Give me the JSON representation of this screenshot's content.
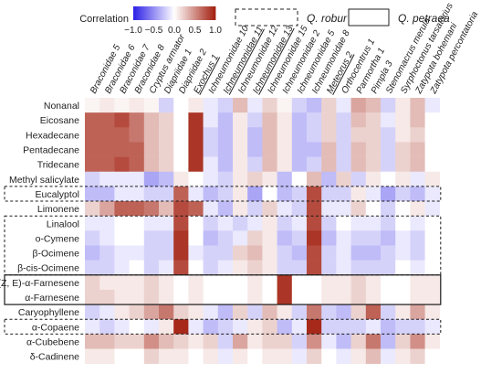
{
  "chart_data": {
    "type": "heatmap",
    "colorbar": {
      "label": "Correlation",
      "ticks": [
        "−1.0",
        "−0.5",
        "0.0",
        "0.5",
        "1.0"
      ],
      "range": [
        -1,
        1
      ],
      "colors": {
        "neg": "#2b1ee6",
        "mid": "#ffffff",
        "pos": "#a21e0e"
      }
    },
    "legend": [
      {
        "label": "Q. robur",
        "style": "dashed"
      },
      {
        "label": "Q. petraea",
        "style": "solid"
      }
    ],
    "columns": [
      "Braconidae 5",
      "Braconidae 6",
      "Braconidae 7",
      "Braconidae 8",
      "Cryptus armator",
      "Diapriidae 1",
      "Diapriidae 2",
      "Exochus 1",
      "Ichneumonidae 10",
      "Ichneumonidae 11",
      "Ichneumonidae 12",
      "Ichneumonidae 13",
      "Ichneumonidae 15",
      "Ichneumonidae 2",
      "Ichneumonidae 5",
      "Ichneumonidae 8",
      "Meteorus 2",
      "Orthocentrus 1",
      "Parmortha 1",
      "Pimpla 3",
      "Stenomacrus merula",
      "Syrphoctonus tarsatorius",
      "Zatypota bohemani",
      "Zatypota percontatoria"
    ],
    "column_underline": [
      "Exochus 1",
      "Ichneumonidae 11",
      "Ichneumonidae 13",
      "Meteorus 2"
    ],
    "rows": [
      "Nonanal",
      "Eicosane",
      "Hexadecane",
      "Pentadecane",
      "Tridecane",
      "Methyl salicylate",
      "Eucalyptol",
      "Limonene",
      "Linalool",
      "o-Cymene",
      "β-Ocimene",
      "β-cis-Ocimene",
      "(Z, E)-α-Farnesene",
      "α-Farnesene",
      "Caryophyllene",
      "α-Copaene",
      "α-Cubebene",
      "δ-Cadinene"
    ],
    "values": [
      [
        0.05,
        0.1,
        0.05,
        0.1,
        0.05,
        -0.2,
        0.0,
        0.1,
        -0.1,
        -0.2,
        0.3,
        -0.1,
        0.2,
        0.05,
        -0.2,
        -0.3,
        0.2,
        -0.1,
        0.4,
        0.3,
        -0.2,
        0.1,
        0.3,
        -0.1
      ],
      [
        0.7,
        0.7,
        0.8,
        0.6,
        0.3,
        0.2,
        0.0,
        0.9,
        -0.1,
        -0.3,
        0.1,
        -0.2,
        0.3,
        0.1,
        -0.3,
        -0.2,
        0.2,
        -0.2,
        0.3,
        0.2,
        -0.1,
        0.1,
        0.3,
        0.0
      ],
      [
        0.7,
        0.7,
        0.7,
        0.6,
        0.3,
        0.2,
        0.0,
        0.9,
        -0.2,
        -0.3,
        0.1,
        -0.3,
        0.3,
        0.1,
        -0.3,
        -0.2,
        0.2,
        -0.2,
        0.2,
        0.2,
        -0.2,
        0.1,
        0.2,
        0.0
      ],
      [
        0.7,
        0.7,
        0.7,
        0.7,
        0.3,
        0.2,
        0.0,
        0.9,
        -0.2,
        -0.3,
        0.1,
        -0.3,
        0.3,
        0.1,
        -0.3,
        -0.3,
        0.3,
        -0.2,
        0.3,
        0.2,
        -0.2,
        0.2,
        0.3,
        0.0
      ],
      [
        0.7,
        0.7,
        0.8,
        0.7,
        0.3,
        0.2,
        0.0,
        0.9,
        -0.1,
        -0.3,
        0.1,
        -0.2,
        0.3,
        0.1,
        -0.3,
        -0.2,
        0.3,
        -0.2,
        0.3,
        0.2,
        -0.2,
        0.2,
        0.3,
        0.0
      ],
      [
        -0.2,
        -0.1,
        -0.1,
        -0.1,
        -0.4,
        -0.3,
        0.1,
        0.0,
        -0.1,
        -0.2,
        0.1,
        0.2,
        0.1,
        -0.3,
        0.0,
        0.3,
        -0.3,
        0.2,
        -0.2,
        0.1,
        0.0,
        0.1,
        -0.1,
        0.1
      ],
      [
        -0.3,
        -0.3,
        -0.1,
        -0.1,
        -0.2,
        -0.2,
        0.7,
        -0.1,
        -0.3,
        -0.2,
        0.1,
        -0.4,
        0.0,
        -0.3,
        -0.2,
        0.8,
        -0.2,
        -0.2,
        0.1,
        -0.1,
        -0.4,
        -0.2,
        -0.3,
        -0.1
      ],
      [
        0.2,
        0.4,
        0.7,
        0.7,
        0.6,
        0.3,
        0.8,
        0.7,
        -0.1,
        -0.3,
        0.1,
        -0.2,
        0.2,
        -0.1,
        -0.2,
        0.8,
        -0.1,
        -0.1,
        0.2,
        0.0,
        -0.2,
        0.0,
        0.1,
        -0.1
      ],
      [
        -0.1,
        -0.1,
        0.0,
        0.0,
        -0.1,
        -0.1,
        0.8,
        0.0,
        -0.2,
        -0.1,
        -0.2,
        -0.1,
        0.1,
        -0.2,
        -0.1,
        0.8,
        -0.2,
        0.0,
        -0.1,
        -0.1,
        -0.2,
        0.0,
        -0.1,
        0.0
      ],
      [
        -0.2,
        -0.1,
        0.0,
        0.0,
        -0.2,
        -0.2,
        0.9,
        0.0,
        -0.3,
        -0.2,
        -0.1,
        0.2,
        0.1,
        -0.3,
        -0.2,
        0.9,
        -0.3,
        -0.1,
        -0.2,
        -0.2,
        -0.3,
        -0.1,
        -0.2,
        0.0
      ],
      [
        -0.3,
        -0.2,
        -0.1,
        -0.1,
        -0.2,
        -0.2,
        0.9,
        -0.1,
        -0.2,
        -0.2,
        0.2,
        0.3,
        0.1,
        -0.2,
        -0.3,
        0.8,
        -0.2,
        -0.1,
        -0.3,
        -0.3,
        -0.2,
        -0.1,
        -0.2,
        0.0
      ],
      [
        -0.2,
        -0.2,
        -0.1,
        0.0,
        -0.2,
        -0.1,
        0.8,
        0.0,
        -0.2,
        -0.1,
        0.1,
        0.2,
        0.1,
        -0.2,
        -0.2,
        0.8,
        -0.2,
        -0.1,
        -0.2,
        -0.2,
        -0.2,
        0.0,
        -0.1,
        0.0
      ],
      [
        0.2,
        0.1,
        0.1,
        0.1,
        0.2,
        0.1,
        0.0,
        0.1,
        0.0,
        0.0,
        0.0,
        0.1,
        0.0,
        0.9,
        0.0,
        0.0,
        0.1,
        0.1,
        0.2,
        0.1,
        0.0,
        0.0,
        0.1,
        0.1
      ],
      [
        0.2,
        0.2,
        0.1,
        0.1,
        0.2,
        0.1,
        0.0,
        0.1,
        0.0,
        0.0,
        0.0,
        0.1,
        0.0,
        0.9,
        0.0,
        0.0,
        0.1,
        0.1,
        0.2,
        0.1,
        0.0,
        0.0,
        0.1,
        0.1
      ],
      [
        -0.2,
        -0.1,
        0.1,
        0.2,
        0.4,
        0.6,
        0.2,
        0.1,
        -0.1,
        -0.3,
        0.2,
        -0.2,
        0.3,
        0.1,
        -0.2,
        0.6,
        -0.2,
        -0.3,
        0.2,
        0.7,
        -0.2,
        0.1,
        0.4,
        0.1
      ],
      [
        -0.1,
        -0.2,
        -0.1,
        0.0,
        -0.1,
        0.1,
        0.95,
        -0.1,
        -0.3,
        -0.2,
        -0.1,
        0.1,
        0.2,
        -0.3,
        -0.1,
        0.95,
        -0.2,
        -0.2,
        -0.2,
        -0.1,
        -0.3,
        -0.2,
        -0.2,
        -0.1
      ],
      [
        0.3,
        0.3,
        0.2,
        0.2,
        0.5,
        0.3,
        0.2,
        0.1,
        0.2,
        -0.2,
        0.4,
        0.1,
        0.2,
        0.2,
        -0.2,
        0.5,
        -0.1,
        -0.3,
        0.2,
        0.6,
        -0.3,
        0.2,
        0.5,
        0.1
      ],
      [
        0.1,
        0.1,
        0.0,
        0.0,
        0.2,
        0.1,
        0.1,
        0.0,
        0.1,
        -0.1,
        0.1,
        0.0,
        0.1,
        0.1,
        -0.1,
        0.2,
        0.0,
        -0.1,
        0.1,
        0.3,
        -0.1,
        0.1,
        0.2,
        0.0
      ]
    ],
    "row_groups": [
      {
        "rows": [
          "Eucalyptol"
        ],
        "style": "dashed",
        "label": "Q. robur"
      },
      {
        "rows": [
          "Linalool",
          "o-Cymene",
          "β-Ocimene",
          "β-cis-Ocimene"
        ],
        "style": "dashed",
        "label": "Q. robur"
      },
      {
        "rows": [
          "(Z, E)-α-Farnesene",
          "α-Farnesene"
        ],
        "style": "solid",
        "label": "Q. petraea"
      },
      {
        "rows": [
          "α-Copaene"
        ],
        "style": "dashed",
        "label": "Q. robur"
      }
    ]
  }
}
